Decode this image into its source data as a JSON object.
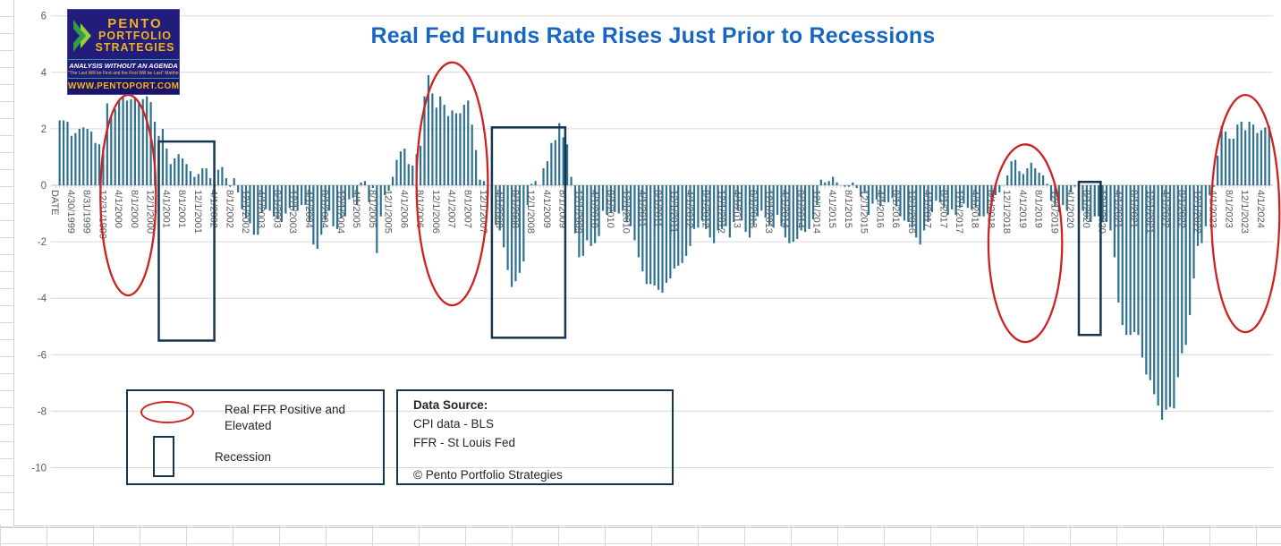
{
  "header": {
    "title": "Real Fed Funds Rate Rises Just Prior to Recessions"
  },
  "logo": {
    "name_line1": "PENTO",
    "name_line2": "PORTFOLIO",
    "name_line3": "STRATEGIES",
    "tagline": "ANALYSIS WITHOUT AN AGENDA",
    "verse": "\"The Last Will be First and the First Will be Last\" Matthew 20:16",
    "url": "WWW.PENTOPORT.COM"
  },
  "legend": {
    "ellipse_label": "Real FFR Positive and Elevated",
    "box_label": "Recession"
  },
  "source_box": {
    "heading": "Data Source:",
    "line1": "CPI data - BLS",
    "line2": "FFR - St Louis Fed",
    "copyright": "© Pento Portfolio Strategies"
  },
  "chart_data": {
    "type": "bar",
    "title": "Real Fed Funds Rate Rises Just Prior to Recessions",
    "xlabel": "",
    "ylabel": "",
    "ylim": [
      -10,
      6
    ],
    "yticks": [
      6,
      4,
      2,
      0,
      -2,
      -4,
      -6,
      -8,
      -10
    ],
    "grid": "horizontal",
    "period": "monthly, Jan 1999 - Jun 2024, first category is the header cell DATE",
    "x_tick_interval": 4,
    "x_tick_labels": [
      "DATE",
      "4/30/1999",
      "8/31/1999",
      "12/31/1999",
      "4/1/2000",
      "8/1/2000",
      "12/1/2000",
      "4/1/2001",
      "8/1/2001",
      "12/1/2001",
      "4/1/2002",
      "8/1/2002",
      "12/1/2002",
      "4/1/2003",
      "8/1/2003",
      "12/1/2003",
      "4/1/2004",
      "8/1/2004",
      "12/1/2004",
      "4/1/2005",
      "8/1/2005",
      "12/1/2005",
      "4/1/2006",
      "8/1/2006",
      "12/1/2006",
      "4/1/2007",
      "8/1/2007",
      "12/1/2007",
      "4/1/2008",
      "8/1/2008",
      "12/1/2008",
      "4/1/2009",
      "8/1/2009",
      "12/1/2009",
      "4/1/2010",
      "8/1/2010",
      "12/1/2010",
      "4/1/2011",
      "8/1/2011",
      "12/1/2011",
      "4/1/2012",
      "8/1/2012",
      "12/1/2012",
      "4/1/2013",
      "8/1/2013",
      "12/1/2013",
      "4/1/2014",
      "8/1/2014",
      "12/1/2014",
      "4/1/2015",
      "8/1/2015",
      "12/1/2015",
      "4/1/2016",
      "8/1/2016",
      "12/1/2016",
      "4/1/2017",
      "8/1/2017",
      "12/1/2017",
      "4/1/2018",
      "8/1/2018",
      "12/1/2018",
      "4/1/2019",
      "8/1/2019",
      "12/1/2019",
      "4/1/2020",
      "8/1/2020",
      "12/1/2020",
      "4/1/2021",
      "8/1/2021",
      "12/1/2021",
      "4/1/2022",
      "8/1/2022",
      "12/1/2022",
      "4/1/2023",
      "8/1/2023",
      "12/1/2023",
      "4/1/2024"
    ],
    "values": [
      2.3,
      2.3,
      2.25,
      1.75,
      1.85,
      2.0,
      2.05,
      2.0,
      1.9,
      1.5,
      1.45,
      1.35,
      2.9,
      2.45,
      2.7,
      3.0,
      3.1,
      3.0,
      3.05,
      3.1,
      2.95,
      3.05,
      3.15,
      2.95,
      2.25,
      1.75,
      2.0,
      1.3,
      0.75,
      0.95,
      1.1,
      0.95,
      0.75,
      0.5,
      0.3,
      0.4,
      0.6,
      0.6,
      0.25,
      0.15,
      0.55,
      0.65,
      0.25,
      -0.05,
      0.25,
      -0.25,
      -0.85,
      -1.15,
      -1.35,
      -1.75,
      -1.75,
      -0.95,
      -0.85,
      -0.9,
      -1.1,
      -1.2,
      -1.3,
      -1.0,
      -0.8,
      -0.9,
      -0.9,
      -0.7,
      -0.7,
      -1.3,
      -2.1,
      -2.25,
      -1.75,
      -1.25,
      -0.9,
      -1.45,
      -1.55,
      -1.15,
      -1.1,
      -0.5,
      -0.45,
      -0.7,
      0.1,
      0.15,
      -0.6,
      -0.1,
      -2.4,
      -1.1,
      -0.35,
      -0.2,
      0.3,
      0.9,
      1.2,
      1.3,
      0.75,
      0.7,
      1.1,
      1.4,
      3.15,
      3.9,
      3.25,
      2.75,
      3.15,
      2.85,
      2.45,
      2.65,
      2.55,
      2.55,
      2.85,
      3.0,
      2.15,
      1.25,
      0.2,
      0.15,
      -0.35,
      -1.0,
      -1.4,
      -1.6,
      -2.2,
      -3.0,
      -3.6,
      -3.4,
      -3.1,
      -2.7,
      -0.7,
      0.05,
      0.15,
      0.0,
      0.6,
      0.85,
      1.5,
      1.6,
      2.2,
      1.7,
      1.45,
      0.3,
      -1.7,
      -2.55,
      -2.5,
      -1.95,
      -2.15,
      -2.05,
      -1.8,
      -0.9,
      -1.05,
      -0.95,
      -0.95,
      -1.0,
      -0.9,
      -1.3,
      -1.45,
      -1.95,
      -2.55,
      -3.05,
      -3.5,
      -3.5,
      -3.55,
      -3.7,
      -3.8,
      -3.45,
      -3.3,
      -2.95,
      -2.85,
      -2.75,
      -2.5,
      -2.15,
      -1.55,
      -1.5,
      -1.25,
      -1.55,
      -1.85,
      -2.05,
      -1.6,
      -1.55,
      -1.45,
      -1.85,
      -1.3,
      -0.9,
      -1.25,
      -1.65,
      -1.85,
      -1.45,
      -1.1,
      -0.9,
      -1.15,
      -1.4,
      -1.5,
      -1.05,
      -1.45,
      -1.85,
      -2.05,
      -2.0,
      -1.9,
      -1.6,
      -1.65,
      -1.55,
      -1.2,
      -0.7,
      0.2,
      0.1,
      0.15,
      0.3,
      0.1,
      0.0,
      -0.05,
      -0.05,
      0.1,
      -0.1,
      -0.4,
      -0.25,
      -1.05,
      -0.65,
      -0.5,
      -0.75,
      -0.6,
      -0.6,
      -0.45,
      -0.75,
      -1.1,
      -1.25,
      -1.3,
      -1.5,
      -1.85,
      -2.1,
      -1.6,
      -1.3,
      -0.95,
      -0.55,
      -0.6,
      -0.8,
      -1.05,
      -0.85,
      -1.05,
      -0.8,
      -0.65,
      -0.8,
      -0.85,
      -0.8,
      -1.1,
      -1.1,
      -1.0,
      -0.75,
      -0.35,
      -0.25,
      0.0,
      0.35,
      0.85,
      0.9,
      0.5,
      0.4,
      0.6,
      0.8,
      0.6,
      0.45,
      0.35,
      0.05,
      -0.55,
      -0.75,
      -0.95,
      -0.7,
      -0.9,
      -0.25,
      -0.05,
      -0.5,
      -0.9,
      -1.2,
      -1.3,
      -1.1,
      -1.1,
      -1.3,
      -1.3,
      -1.6,
      -2.55,
      -4.15,
      -4.95,
      -5.3,
      -5.3,
      -5.2,
      -5.3,
      -6.1,
      -6.7,
      -6.9,
      -7.4,
      -7.8,
      -8.3,
      -7.95,
      -7.85,
      -7.9,
      -6.8,
      -5.95,
      -5.65,
      -4.6,
      -3.3,
      -2.15,
      -2.05,
      -1.45,
      -0.35,
      -0.05,
      1.05,
      2.1,
      1.9,
      1.65,
      1.65,
      2.15,
      2.25,
      1.95,
      2.25,
      2.15,
      1.85,
      1.95,
      2.05,
      2.1
    ],
    "bar_color": "#2e7191",
    "axis_text_color": "#595959",
    "gridline_color": "#d9d9d9",
    "zero_axis_color": "#bfbfbf",
    "ellipse_color": "#ce2222",
    "box_color": "#16364f",
    "annotations": {
      "highlight_ellipses": [
        {
          "label": "Real FFR Positive and Elevated",
          "center_index": 18.3,
          "center_value": -0.35,
          "radius_index": 7.0,
          "radius_value": 3.55
        },
        {
          "label": "Real FFR Positive and Elevated",
          "center_index": 100,
          "center_value": 0.05,
          "radius_index": 9.0,
          "radius_value": 4.3
        },
        {
          "label": "Real FFR Positive and Elevated",
          "center_index": 244.5,
          "center_value": -2.05,
          "radius_index": 9.3,
          "radius_value": 3.5
        },
        {
          "label": "Real FFR Positive and Elevated",
          "center_index": 300,
          "center_value": -1.0,
          "radius_index": 8.6,
          "radius_value": 4.2
        }
      ],
      "recession_boxes": [
        {
          "label": "Recession",
          "i0": 26,
          "i1": 40,
          "v0": 1.55,
          "v1": -5.5
        },
        {
          "label": "Recession",
          "i0": 110,
          "i1": 128.5,
          "v0": 2.05,
          "v1": -5.4
        },
        {
          "label": "Recession",
          "i0": 258,
          "i1": 263.5,
          "v0": 0.12,
          "v1": -5.3
        }
      ]
    }
  }
}
